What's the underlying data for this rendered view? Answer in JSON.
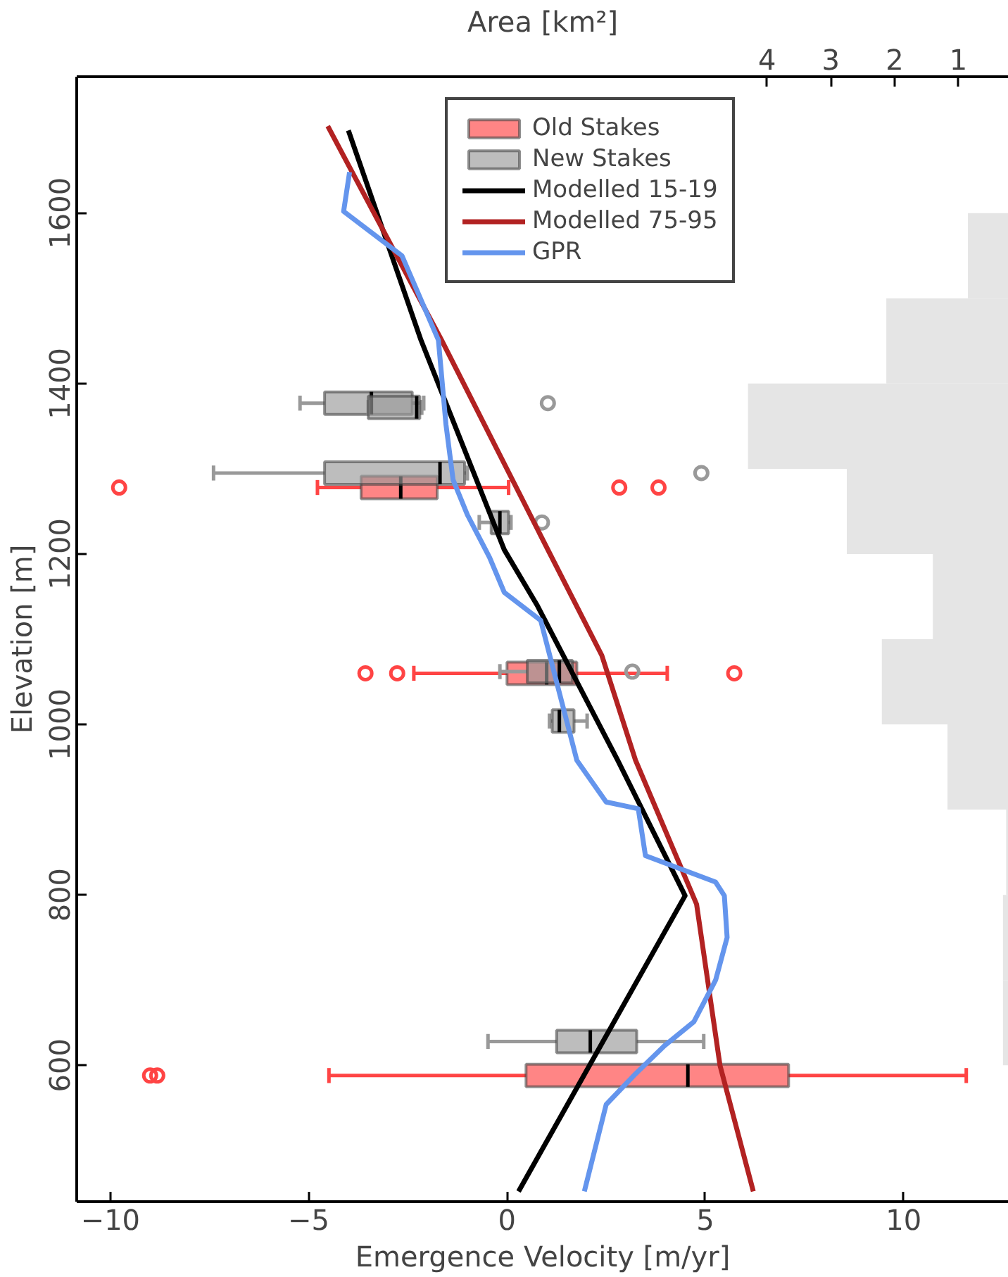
{
  "chart_data": {
    "type": "box",
    "orientation": "horizontal",
    "xlabel": "Emergence Velocity [m/yr]",
    "ylabel": "Elevation [m]",
    "x2label": "Area [km²]",
    "xlim": [
      -10.85,
      12.65
    ],
    "xticks": [
      {
        "value": -10,
        "label": "−10"
      },
      {
        "value": -5,
        "label": "−5"
      },
      0,
      5,
      10
    ],
    "ylim": [
      440,
      1760
    ],
    "yticks": [
      600,
      800,
      1000,
      1200,
      1400,
      1600
    ],
    "x2lim": [
      14.83,
      0.21
    ],
    "x2ticks": [
      4,
      3,
      2,
      1
    ],
    "grid": false,
    "legend": "top",
    "series": [
      {
        "type": "histogram",
        "axis": "x2",
        "color": "#e5e5e5",
        "bins": [
          600,
          700,
          800,
          900,
          1000,
          1100,
          1200,
          1300,
          1400,
          1500,
          1600
        ],
        "values": [
          0.3,
          0.3,
          0.25,
          1.17,
          2.2,
          1.4,
          2.75,
          4.3,
          2.13,
          0.85
        ]
      },
      {
        "name": "Old Stakes",
        "color": "#ff4444",
        "x": [
          1278,
          1060,
          588
        ],
        "boxes": [
          {
            "low": -4.78,
            "q1": -3.68,
            "median": -2.68,
            "q3": -1.76,
            "high": 0.04,
            "outliers": [
              -9.78,
              2.83,
              3.82
            ]
          },
          {
            "low": -2.35,
            "q1": 0.0,
            "median": 1.0,
            "q3": 1.76,
            "high": 4.04,
            "outliers": [
              -3.57,
              -2.77,
              5.73
            ]
          },
          {
            "low": -4.49,
            "q1": 0.48,
            "median": 4.56,
            "q3": 7.1,
            "high": 11.58,
            "outliers": [
              -9.0,
              -8.82
            ]
          }
        ]
      },
      {
        "name": "New Stakes",
        "color": "#999999",
        "x": [
          1377,
          1372,
          1295,
          1237,
          1062,
          1004,
          628
        ],
        "boxes": [
          {
            "low": -5.22,
            "q1": -4.6,
            "median": -3.42,
            "q3": -2.39,
            "high": -2.1,
            "outliers": [
              1.03
            ]
          },
          {
            "low": -3.5,
            "q1": -3.5,
            "median": -2.28,
            "q3": -2.2,
            "high": -2.15
          },
          {
            "low": -7.4,
            "q1": -4.6,
            "median": -1.69,
            "q3": -1.07,
            "high": -1.0,
            "outliers": [
              4.9
            ]
          },
          {
            "low": -0.7,
            "q1": -0.4,
            "median": -0.18,
            "q3": 0.04,
            "high": 0.1,
            "outliers": [
              0.88
            ]
          },
          {
            "low": -0.18,
            "q1": 0.51,
            "median": 1.32,
            "q3": 1.65,
            "high": 1.65,
            "outliers": [
              3.16
            ]
          },
          {
            "low": 1.07,
            "q1": 1.14,
            "median": 1.32,
            "q3": 1.69,
            "high": 2.02
          },
          {
            "low": -0.48,
            "q1": 1.25,
            "median": 2.1,
            "q3": 3.27,
            "high": 4.96
          }
        ]
      },
      {
        "type": "line",
        "name": "Modelled 15-19",
        "color": "#000000",
        "x": [
          1697,
          1451,
          1205,
          1139,
          958,
          799,
          452
        ],
        "values": [
          -4.0,
          -2.17,
          -0.07,
          0.77,
          2.79,
          4.49,
          0.29
        ]
      },
      {
        "type": "line",
        "name": "Modelled 75-95",
        "color": "#b22222",
        "x": [
          1702,
          1451,
          1205,
          1081,
          958,
          789,
          600,
          452
        ],
        "values": [
          -4.52,
          -1.65,
          1.03,
          2.39,
          3.24,
          4.78,
          5.37,
          6.21
        ]
      },
      {
        "type": "line",
        "name": "GPR",
        "color": "#6495ed",
        "x": [
          1648,
          1602,
          1550,
          1451,
          1352,
          1287,
          1246,
          1196,
          1155,
          1122,
          1057,
          958,
          909,
          901,
          846,
          815,
          799,
          750,
          700,
          651,
          623,
          590,
          554,
          452
        ],
        "values": [
          -3.97,
          -4.12,
          -2.65,
          -1.73,
          -1.54,
          -1.36,
          -1.0,
          -0.44,
          -0.07,
          0.85,
          1.21,
          1.76,
          2.5,
          3.31,
          3.49,
          5.26,
          5.48,
          5.55,
          5.26,
          4.71,
          3.97,
          3.24,
          2.5,
          1.95
        ]
      }
    ]
  }
}
